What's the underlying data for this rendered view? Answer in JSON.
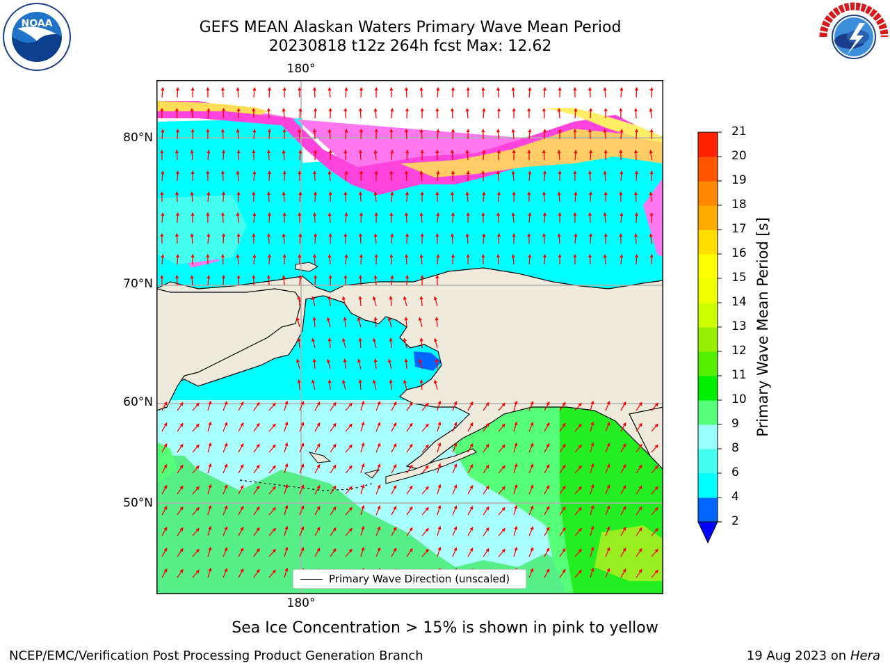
{
  "title_line1": "GEFS MEAN Alaskan Waters Primary Wave Mean Period",
  "title_line2": "20230818 t12z 264h fcst   Max: 12.62",
  "logos": {
    "noaa": {
      "name": "noaa-logo",
      "text": "NOAA"
    },
    "nws": {
      "name": "nws-logo",
      "text": "NATIONAL WEATHER SERVICE"
    }
  },
  "map": {
    "lon_label_top": "180°",
    "lon_label_bottom": "180°",
    "lat_labels": [
      "80°N",
      "70°N",
      "60°N",
      "50°N"
    ],
    "colors": {
      "land": "#efebdc",
      "arrow": "#ff0000",
      "grid": "#b0b0b0"
    }
  },
  "legend": {
    "label": "Primary Wave Direction (unscaled)"
  },
  "colorbar": {
    "label": "Primary Wave Mean Period [s]",
    "ticks": [
      "2",
      "4",
      "6",
      "8",
      "9",
      "10",
      "11",
      "12",
      "13",
      "14",
      "15",
      "16",
      "17",
      "18",
      "19",
      "20",
      "21"
    ],
    "colors": [
      "#0066ff",
      "#00ffff",
      "#44ffee",
      "#99ffff",
      "#55ff77",
      "#00ee00",
      "#55ee00",
      "#99ee00",
      "#ccff00",
      "#eeff00",
      "#ffff00",
      "#ffdd00",
      "#ffaa00",
      "#ff8800",
      "#ff5500",
      "#ff2200"
    ],
    "extend_color": "#0000ff"
  },
  "footer": {
    "note": "Sea Ice Concentration > 15% is shown in pink to yellow",
    "credit": "NCEP/EMC/Verification Post Processing Product Generation Branch",
    "date": "19 Aug 2023 on",
    "machine": "Hera"
  }
}
